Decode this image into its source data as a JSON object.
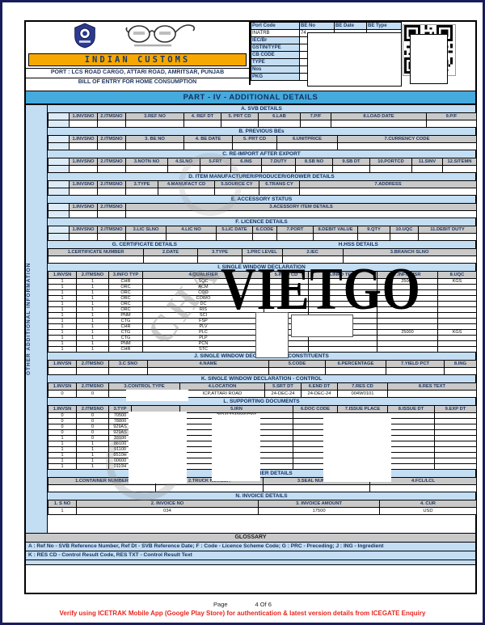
{
  "header": {
    "brand": "INDIAN  CUSTOMS",
    "port_line": "PORT : LCS ROAD CARGO, ATTARI ROAD, AMRITSAR, PUNJAB",
    "doc_line": "BILL OF ENTRY FOR HOME CONSUMPTION",
    "meta": {
      "col_headers": [
        "Port Code",
        "BE No",
        "BE Date",
        "BE Type"
      ],
      "port_code": "INATRB",
      "be_no_partial": "74",
      "row_labels": [
        "IEC/Br",
        "GSTIN/TYPE",
        "CB CODE",
        "TYPE",
        "Nos",
        "PKG"
      ]
    },
    "icons": {
      "emblem": "customs-emblem",
      "glasses": "swachh-bharat-glasses",
      "qr": "qr-code"
    }
  },
  "part_title": "PART - IV - ADDITIONAL DETAILS",
  "sidebar_label": "OTHER ADDITIONAL INFORMATION",
  "watermark": {
    "text": "VIETGO",
    "stamp_text": "CHA"
  },
  "colors": {
    "part_bar_blue": "#45AADD",
    "light_blue": "#C3DDF3",
    "header_gray": "#C9C9C9",
    "navy_text": "#1F3864",
    "brand_orange": "#F6A800",
    "verify_red": "#E8251D"
  },
  "sections": {
    "a": {
      "title": "A. SVB DETAILS",
      "headers": [
        "",
        "1.INVSNO",
        "2.ITMSNO",
        "3.REF NO",
        "4. REF DT",
        "5. PRT CD",
        "6.LAB",
        "7.P/F",
        "8.LOAD DATE",
        "9.P/F"
      ],
      "rows": [
        [
          "",
          "",
          "",
          "",
          "",
          "",
          "",
          "",
          "",
          ""
        ]
      ]
    },
    "b": {
      "title": "B. PREVIOUS BEs",
      "headers": [
        "",
        "1.INVSNO",
        "2.ITMSNO",
        "3. BE NO",
        "4. BE DATE",
        "5. PRT CD",
        "6.UNITPRICE",
        "7.CURRENCY CODE"
      ],
      "rows": [
        [
          "",
          "",
          "",
          "",
          "",
          "",
          "",
          ""
        ]
      ]
    },
    "c": {
      "title": "C. RE-IMPORT AFTER EXPORT",
      "headers": [
        "",
        "1.INVSNO",
        "2.ITMSNO",
        "3.NOTN NO",
        "4.SLNO",
        "5.FRT",
        "6.INS",
        "7.DUTY",
        "8.SB NO",
        "9.SB DT",
        "10.PORTCD",
        "11.SINV",
        "12.SITEMN"
      ],
      "rows": [
        [
          "",
          "",
          "",
          "",
          "",
          "",
          "",
          "",
          "",
          "",
          "",
          "",
          ""
        ]
      ]
    },
    "d": {
      "title": "D. ITEM MANUFACTURER/PRODUCER/GROWER DETAILS",
      "headers": [
        "",
        "1.INVSNO",
        "2.ITMSNO",
        "3.TYPE",
        "4.MANUFACT CD",
        "5.SOURCE CY",
        "6.TRANS CY",
        "7.ADDRESS"
      ],
      "rows": [
        [
          "",
          "",
          "",
          "",
          "",
          "",
          "",
          ""
        ]
      ]
    },
    "e": {
      "title": "E. ACCESSORY STATUS",
      "headers": [
        "",
        "1.INVSNO",
        "2.ITMSNO",
        "3.ACESSORY ITEM DETAILS"
      ],
      "rows": [
        [
          "",
          "",
          "",
          ""
        ]
      ]
    },
    "f": {
      "title": "F. LICENCE DETAILS",
      "headers": [
        "",
        "1.INVSNO",
        "2.ITMSNO",
        "3.LIC SLNO",
        "4.LIC NO",
        "5.LIC DATE",
        "6.CODE",
        "7.PORT",
        "8.DEBIT VALUE",
        "9.QTY",
        "10.UQC",
        "11.DEBIT DUTY"
      ],
      "rows": [
        [
          "",
          "",
          "",
          "",
          "",
          "",
          "",
          "",
          "",
          "",
          "",
          ""
        ]
      ]
    },
    "g": {
      "title": "G. CERTIFICATE DETAILS",
      "headers": [
        "1.CERTIFICATE NUMBER",
        "2.DATE",
        "3.TYPE"
      ],
      "rows": [
        [
          "",
          "",
          ""
        ]
      ]
    },
    "h": {
      "title": "H.HSS DETAILS",
      "headers": [
        "1.PRC LEVEL",
        "2.IEC",
        "3.BRANCH SLNO"
      ],
      "rows": [
        [
          "",
          "",
          ""
        ]
      ]
    },
    "i": {
      "title": "I. SINGLE WINDOW DECLARATION",
      "headers": [
        "1.INVSN",
        "2.ITMSNO",
        "3.INFO TYP",
        "4.QUALIFIER",
        "5.INFO CD",
        "6.INFO TEXT",
        "7.INFO MSR",
        "8.UQC"
      ],
      "rows": [
        [
          "1",
          "1",
          "CHR",
          "SQC",
          "",
          "",
          "25000",
          "KGS"
        ],
        [
          "1",
          "1",
          "ORC",
          "ACM",
          "",
          "",
          "",
          ""
        ],
        [
          "1",
          "1",
          "ORC",
          "COO",
          "",
          "",
          "",
          ""
        ],
        [
          "1",
          "1",
          "ORC",
          "COWO",
          "",
          "",
          "",
          ""
        ],
        [
          "1",
          "1",
          "ORC",
          "DC",
          "",
          "",
          "",
          ""
        ],
        [
          "1",
          "1",
          "ORC",
          "RIS",
          "",
          "",
          "",
          ""
        ],
        [
          "1",
          "1",
          "PNM",
          "SCI",
          "",
          "",
          "",
          ""
        ],
        [
          "1",
          "1",
          "CTG",
          "FSP",
          "",
          "",
          "",
          ""
        ],
        [
          "1",
          "1",
          "CHR",
          "PLV",
          "",
          "",
          "",
          ""
        ],
        [
          "1",
          "1",
          "CTG",
          "PLC",
          "",
          "",
          "25000",
          "KGS"
        ],
        [
          "1",
          "1",
          "CTG",
          "PLP",
          "",
          "",
          "",
          ""
        ],
        [
          "1",
          "1",
          "PNM",
          "PCN",
          "",
          "",
          "",
          ""
        ],
        [
          "1",
          "1",
          "CHR",
          "STC",
          "",
          "",
          "",
          ""
        ]
      ]
    },
    "j": {
      "title": "J. SINGLE WINDOW DECLARATION - CONSTITUENTS",
      "headers": [
        "1.INVSN",
        "2.ITMSNO",
        "3.C SNO",
        "4.NAME",
        "5.CODE",
        "6.PERCENTAGE",
        "7.YIELD PCT",
        "8.ING"
      ],
      "rows": [
        [
          "",
          "",
          "",
          "",
          "",
          "",
          "",
          ""
        ]
      ]
    },
    "k": {
      "title": "K. SINGLE WINDOW DECLARATION - CONTROL",
      "headers": [
        "1.INVSN",
        "2.ITMSNO",
        "3.CONTROL TYPE",
        "4.LOCATION",
        "5.SRT DT",
        "6.END DT",
        "7.RES CD",
        "8.RES TEXT"
      ],
      "rows": [
        [
          "0",
          "0",
          "",
          "ICP,ATTARI ROAD",
          "24-DEC-24",
          "24-DEC-24",
          "004W0101",
          ""
        ]
      ]
    },
    "l": {
      "title": "L. SUPPORTING DOCUMENTS",
      "headers": [
        "1.INVSN",
        "2.ITMSNO",
        "3.TYP",
        "",
        "5.IRN",
        "6.DOC CODE",
        "7.ISSUE PLACE",
        "8.ISSUE DT",
        "9.EXP DT"
      ],
      "rows": [
        [
          "0",
          "0",
          "70500",
          "",
          "2024122400007297",
          "",
          "A",
          "",
          ""
        ],
        [
          "0",
          "0",
          "78800",
          "",
          "",
          "",
          "",
          "",
          ""
        ],
        [
          "0",
          "0",
          "929AS",
          "",
          "",
          "",
          "",
          "",
          ""
        ],
        [
          "0",
          "0",
          "929AS",
          "",
          "",
          "",
          "",
          "",
          ""
        ],
        [
          "1",
          "0",
          "33100",
          "",
          "",
          "",
          "A",
          "",
          ""
        ],
        [
          "1",
          "1",
          "86100",
          "",
          "",
          "",
          "A",
          "",
          ""
        ],
        [
          "1",
          "1",
          "91100",
          "",
          "",
          "",
          "",
          "",
          ""
        ],
        [
          "1",
          "1",
          "8510H",
          "",
          "",
          "",
          "A",
          "",
          ""
        ],
        [
          "1",
          "1",
          "00600",
          "",
          "",
          "",
          "",
          "",
          ""
        ],
        [
          "1",
          "1",
          "0110H",
          "",
          "2024122400707",
          "",
          "A",
          "",
          ""
        ]
      ]
    },
    "m": {
      "title": "M. CONTAINER DETAILS",
      "headers": [
        "1.CONTAINER NUMBER",
        "2.TRUCK NUMBER",
        "3.SEAL NUMBER",
        "4.FCL/LCL"
      ],
      "rows": [
        [
          "",
          "",
          "",
          ""
        ]
      ]
    },
    "n": {
      "title": "N. INVOICE DETAILS",
      "headers": [
        "1. S NO",
        "2. INVOICE NO",
        "3. INVOICE AMOUNT",
        "4. CUR"
      ],
      "rows": [
        [
          "1",
          "034",
          "17500",
          "USD"
        ]
      ]
    }
  },
  "glossary": {
    "title": "GLOSSARY",
    "lines": [
      "A : Ref No - SVB Reference Number, Ref Dt - SVB Reference Date; F : Code -  Licence Scheme Code; G : PRC - Preceding; J : ING - Ingredient",
      "K : RES CD - Control Result Code, RES TXT - Control Result Text"
    ]
  },
  "footer": {
    "page_label": "Page",
    "page_value": "4 Of 6",
    "verify_text": "Verify using ICETRAK Mobile App (Google Play Store) for authentication & latest version details from ICEGATE Enquiry"
  }
}
